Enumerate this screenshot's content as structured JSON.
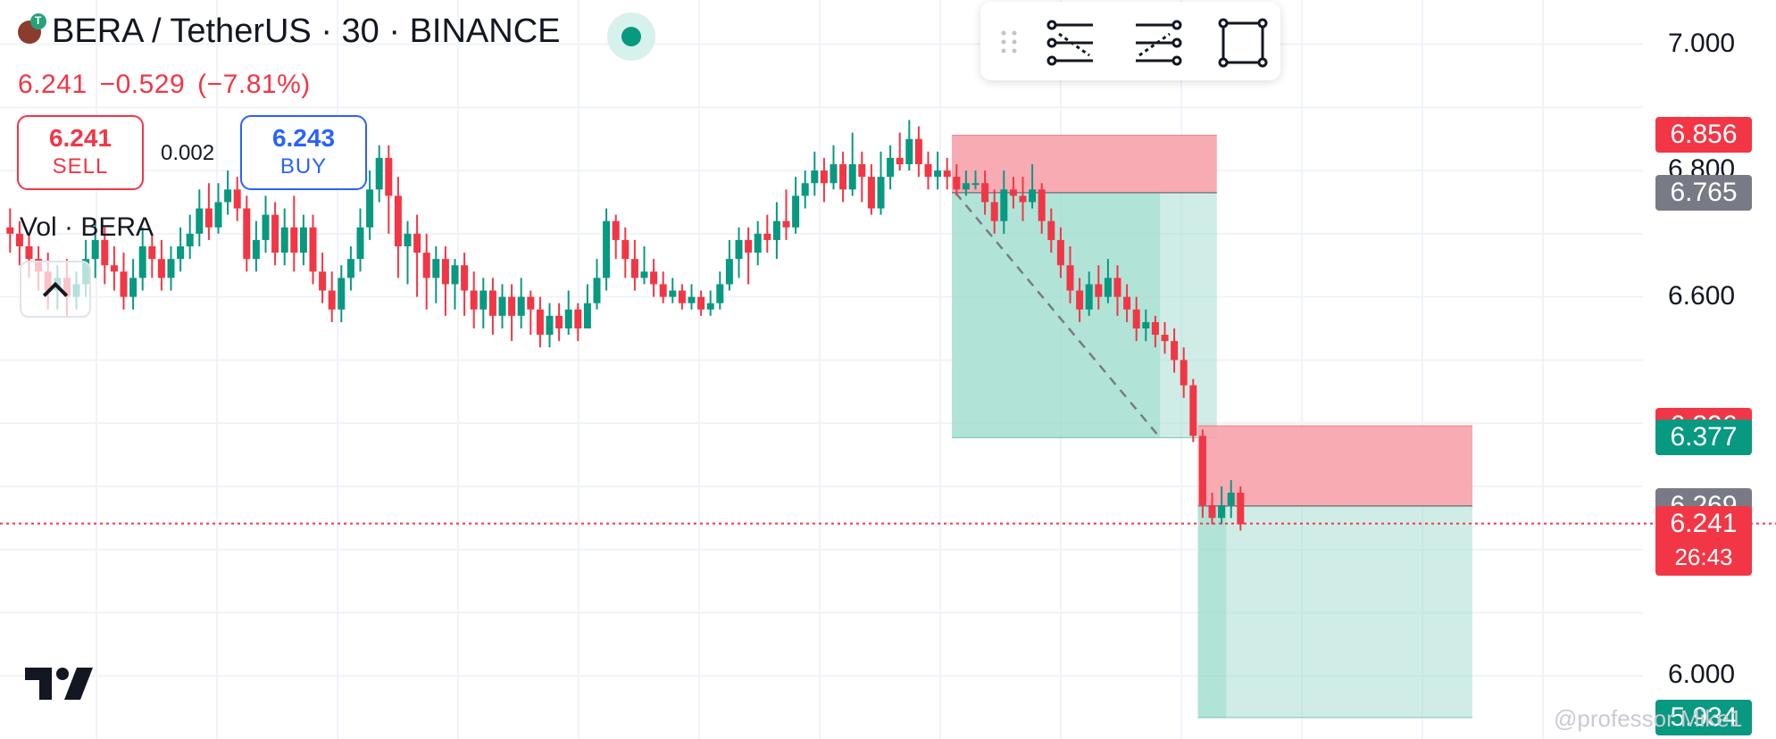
{
  "header": {
    "symbol_line": "BERA / TetherUS · 30 · BINANCE",
    "last_price": "6.241",
    "change": "−0.529",
    "change_pct": "(−7.81%)",
    "status": "market-open"
  },
  "trade": {
    "sell_price": "6.241",
    "sell_label": "SELL",
    "spread": "0.002",
    "buy_price": "6.243",
    "buy_label": "BUY"
  },
  "volume_label": "Vol · BERA",
  "toolbar": {
    "icons": [
      "drag-grip-icon",
      "short-position-tool-icon",
      "long-position-tool-icon",
      "rectangle-tool-icon"
    ]
  },
  "watermark": "@professor Mike1",
  "colors": {
    "up": "#089981",
    "down": "#f23645",
    "accent": "#2962ff",
    "stop_zone": "#f7a2ab",
    "target_zone": "#9fdccd"
  },
  "chart_data": {
    "type": "candlestick",
    "timeframe": "30",
    "ylim": [
      5.9,
      7.07
    ],
    "y_ticks": [
      "7.000",
      "6.800",
      "6.600",
      "6.000"
    ],
    "price_labels": [
      {
        "value": "6.856",
        "kind": "down"
      },
      {
        "value": "6.765",
        "kind": "gray"
      },
      {
        "value": "6.396",
        "kind": "down"
      },
      {
        "value": "6.377",
        "kind": "up"
      },
      {
        "value": "6.269",
        "kind": "gray"
      },
      {
        "value": "6.241",
        "kind": "down",
        "countdown": "26:43"
      },
      {
        "value": "5.934",
        "kind": "up"
      }
    ],
    "positions": [
      {
        "type": "short",
        "entry": 6.765,
        "stop": 6.856,
        "target": 6.377,
        "start_bar": 100,
        "end_bar": 128,
        "filled_bar": 122
      },
      {
        "type": "short",
        "entry": 6.269,
        "stop": 6.396,
        "target": 5.934,
        "start_bar": 126,
        "end_bar": 155,
        "filled_bar": 129
      }
    ],
    "current_price": 6.241,
    "candles": [
      [
        6.71,
        6.7,
        6.74,
        6.67
      ],
      [
        6.7,
        6.68,
        6.72,
        6.65
      ],
      [
        6.68,
        6.66,
        6.7,
        6.63
      ],
      [
        6.66,
        6.64,
        6.68,
        6.61
      ],
      [
        6.64,
        6.61,
        6.67,
        6.58
      ],
      [
        6.61,
        6.63,
        6.65,
        6.58
      ],
      [
        6.63,
        6.6,
        6.66,
        6.57
      ],
      [
        6.6,
        6.62,
        6.64,
        6.58
      ],
      [
        6.62,
        6.66,
        6.69,
        6.6
      ],
      [
        6.66,
        6.69,
        6.72,
        6.63
      ],
      [
        6.69,
        6.65,
        6.71,
        6.62
      ],
      [
        6.65,
        6.64,
        6.68,
        6.61
      ],
      [
        6.64,
        6.6,
        6.67,
        6.58
      ],
      [
        6.6,
        6.63,
        6.66,
        6.58
      ],
      [
        6.63,
        6.68,
        6.71,
        6.61
      ],
      [
        6.68,
        6.66,
        6.7,
        6.63
      ],
      [
        6.66,
        6.63,
        6.69,
        6.61
      ],
      [
        6.63,
        6.66,
        6.68,
        6.61
      ],
      [
        6.66,
        6.68,
        6.71,
        6.64
      ],
      [
        6.68,
        6.7,
        6.73,
        6.66
      ],
      [
        6.7,
        6.74,
        6.77,
        6.68
      ],
      [
        6.74,
        6.71,
        6.78,
        6.69
      ],
      [
        6.71,
        6.75,
        6.78,
        6.7
      ],
      [
        6.75,
        6.77,
        6.8,
        6.73
      ],
      [
        6.77,
        6.74,
        6.79,
        6.72
      ],
      [
        6.74,
        6.66,
        6.76,
        6.64
      ],
      [
        6.66,
        6.69,
        6.72,
        6.64
      ],
      [
        6.69,
        6.73,
        6.76,
        6.67
      ],
      [
        6.73,
        6.67,
        6.75,
        6.65
      ],
      [
        6.67,
        6.71,
        6.74,
        6.65
      ],
      [
        6.71,
        6.67,
        6.76,
        6.64
      ],
      [
        6.67,
        6.71,
        6.73,
        6.65
      ],
      [
        6.71,
        6.64,
        6.73,
        6.62
      ],
      [
        6.64,
        6.61,
        6.67,
        6.59
      ],
      [
        6.61,
        6.58,
        6.64,
        6.56
      ],
      [
        6.58,
        6.63,
        6.65,
        6.56
      ],
      [
        6.63,
        6.66,
        6.68,
        6.61
      ],
      [
        6.66,
        6.71,
        6.74,
        6.64
      ],
      [
        6.71,
        6.77,
        6.8,
        6.69
      ],
      [
        6.77,
        6.82,
        6.84,
        6.75
      ],
      [
        6.82,
        6.76,
        6.84,
        6.7
      ],
      [
        6.76,
        6.68,
        6.79,
        6.63
      ],
      [
        6.68,
        6.7,
        6.72,
        6.62
      ],
      [
        6.7,
        6.67,
        6.73,
        6.6
      ],
      [
        6.67,
        6.63,
        6.7,
        6.58
      ],
      [
        6.63,
        6.66,
        6.68,
        6.59
      ],
      [
        6.66,
        6.62,
        6.68,
        6.57
      ],
      [
        6.62,
        6.65,
        6.66,
        6.58
      ],
      [
        6.65,
        6.61,
        6.67,
        6.57
      ],
      [
        6.61,
        6.58,
        6.64,
        6.55
      ],
      [
        6.58,
        6.61,
        6.63,
        6.55
      ],
      [
        6.61,
        6.57,
        6.63,
        6.54
      ],
      [
        6.57,
        6.6,
        6.62,
        6.55
      ],
      [
        6.6,
        6.57,
        6.62,
        6.53
      ],
      [
        6.57,
        6.6,
        6.63,
        6.55
      ],
      [
        6.6,
        6.58,
        6.61,
        6.54
      ],
      [
        6.58,
        6.54,
        6.6,
        6.52
      ],
      [
        6.54,
        6.57,
        6.59,
        6.52
      ],
      [
        6.57,
        6.55,
        6.59,
        6.53
      ],
      [
        6.55,
        6.58,
        6.61,
        6.54
      ],
      [
        6.58,
        6.55,
        6.59,
        6.53
      ],
      [
        6.55,
        6.59,
        6.62,
        6.55
      ],
      [
        6.59,
        6.63,
        6.66,
        6.58
      ],
      [
        6.63,
        6.72,
        6.74,
        6.61
      ],
      [
        6.72,
        6.69,
        6.73,
        6.66
      ],
      [
        6.69,
        6.66,
        6.71,
        6.63
      ],
      [
        6.66,
        6.63,
        6.69,
        6.61
      ],
      [
        6.63,
        6.64,
        6.68,
        6.62
      ],
      [
        6.64,
        6.62,
        6.66,
        6.6
      ],
      [
        6.62,
        6.6,
        6.64,
        6.59
      ],
      [
        6.6,
        6.61,
        6.63,
        6.59
      ],
      [
        6.61,
        6.59,
        6.62,
        6.58
      ],
      [
        6.59,
        6.6,
        6.62,
        6.58
      ],
      [
        6.6,
        6.58,
        6.61,
        6.57
      ],
      [
        6.58,
        6.59,
        6.61,
        6.57
      ],
      [
        6.59,
        6.62,
        6.64,
        6.58
      ],
      [
        6.62,
        6.66,
        6.69,
        6.61
      ],
      [
        6.66,
        6.69,
        6.71,
        6.63
      ],
      [
        6.69,
        6.67,
        6.71,
        6.62
      ],
      [
        6.67,
        6.7,
        6.72,
        6.65
      ],
      [
        6.7,
        6.69,
        6.73,
        6.67
      ],
      [
        6.69,
        6.72,
        6.75,
        6.66
      ],
      [
        6.72,
        6.71,
        6.77,
        6.69
      ],
      [
        6.71,
        6.76,
        6.79,
        6.7
      ],
      [
        6.76,
        6.78,
        6.8,
        6.74
      ],
      [
        6.78,
        6.8,
        6.83,
        6.76
      ],
      [
        6.8,
        6.78,
        6.82,
        6.75
      ],
      [
        6.78,
        6.81,
        6.84,
        6.77
      ],
      [
        6.81,
        6.77,
        6.83,
        6.75
      ],
      [
        6.77,
        6.81,
        6.86,
        6.76
      ],
      [
        6.81,
        6.79,
        6.83,
        6.75
      ],
      [
        6.79,
        6.74,
        6.81,
        6.73
      ],
      [
        6.74,
        6.79,
        6.83,
        6.73
      ],
      [
        6.79,
        6.82,
        6.84,
        6.77
      ],
      [
        6.82,
        6.81,
        6.86,
        6.8
      ],
      [
        6.81,
        6.85,
        6.88,
        6.8
      ],
      [
        6.85,
        6.81,
        6.87,
        6.79
      ],
      [
        6.81,
        6.79,
        6.83,
        6.77
      ],
      [
        6.79,
        6.8,
        6.83,
        6.77
      ],
      [
        6.8,
        6.79,
        6.82,
        6.77
      ],
      [
        6.79,
        6.77,
        6.81,
        6.76
      ],
      [
        6.77,
        6.78,
        6.8,
        6.76
      ],
      [
        6.78,
        6.78,
        6.8,
        6.77
      ],
      [
        6.78,
        6.75,
        6.8,
        6.73
      ],
      [
        6.75,
        6.72,
        6.77,
        6.7
      ],
      [
        6.72,
        6.77,
        6.8,
        6.7
      ],
      [
        6.77,
        6.76,
        6.79,
        6.74
      ],
      [
        6.76,
        6.75,
        6.79,
        6.72
      ],
      [
        6.75,
        6.77,
        6.81,
        6.74
      ],
      [
        6.77,
        6.72,
        6.78,
        6.7
      ],
      [
        6.72,
        6.69,
        6.74,
        6.67
      ],
      [
        6.69,
        6.65,
        6.71,
        6.63
      ],
      [
        6.65,
        6.61,
        6.68,
        6.59
      ],
      [
        6.61,
        6.58,
        6.63,
        6.56
      ],
      [
        6.58,
        6.62,
        6.64,
        6.57
      ],
      [
        6.62,
        6.6,
        6.65,
        6.58
      ],
      [
        6.6,
        6.63,
        6.66,
        6.59
      ],
      [
        6.63,
        6.6,
        6.65,
        6.57
      ],
      [
        6.6,
        6.58,
        6.62,
        6.56
      ],
      [
        6.58,
        6.55,
        6.6,
        6.53
      ],
      [
        6.55,
        6.56,
        6.58,
        6.53
      ],
      [
        6.56,
        6.54,
        6.57,
        6.52
      ],
      [
        6.54,
        6.53,
        6.56,
        6.51
      ],
      [
        6.53,
        6.5,
        6.55,
        6.48
      ],
      [
        6.5,
        6.46,
        6.52,
        6.44
      ],
      [
        6.46,
        6.38,
        6.47,
        6.37
      ],
      [
        6.38,
        6.27,
        6.39,
        6.25
      ],
      [
        6.27,
        6.25,
        6.29,
        6.24
      ],
      [
        6.25,
        6.27,
        6.3,
        6.24
      ],
      [
        6.27,
        6.29,
        6.31,
        6.25
      ],
      [
        6.29,
        6.24,
        6.3,
        6.23
      ]
    ]
  }
}
